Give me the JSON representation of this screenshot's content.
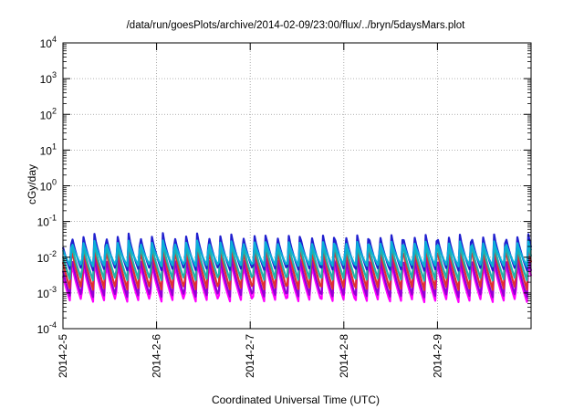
{
  "chart_data": {
    "type": "line",
    "title": "/data/run/goesPlots/archive/2014-02-09/23:00/flux/../bryn/5daysMars.plot",
    "xlabel": "Coordinated Universal Time (UTC)",
    "ylabel": "cGy/day",
    "y_scale": "log",
    "ylim": [
      0.0001,
      10000
    ],
    "xlim": [
      "2014-02-05 00:00",
      "2014-02-10 00:00"
    ],
    "grid": true,
    "legend": "none",
    "x_tick_labels": [
      "2014-2-5",
      "2014-2-6",
      "2014-2-7",
      "2014-2-8",
      "2014-2-9"
    ],
    "y_ticks": [
      {
        "base": "10",
        "exp": "-4"
      },
      {
        "base": "10",
        "exp": "-3"
      },
      {
        "base": "10",
        "exp": "-2"
      },
      {
        "base": "10",
        "exp": "-1"
      },
      {
        "base": "10",
        "exp": "0"
      },
      {
        "base": "10",
        "exp": "1"
      },
      {
        "base": "10",
        "exp": "2"
      },
      {
        "base": "10",
        "exp": "3"
      },
      {
        "base": "10",
        "exp": "4"
      }
    ],
    "cycles_per_day": 8.2,
    "series": [
      {
        "color": "#ff00ff",
        "peak": 0.0085,
        "trough": 0.00055
      },
      {
        "color": "#9400d3",
        "peak": 0.012,
        "trough": 0.00075
      },
      {
        "color": "#e03030",
        "peak": 0.022,
        "trough": 0.0012
      },
      {
        "color": "#20b2aa",
        "peak": 0.028,
        "trough": 0.0022
      },
      {
        "color": "#1f1fcf",
        "peak": 0.048,
        "trough": 0.0042
      },
      {
        "color": "#0ab0d8",
        "peak": 0.03,
        "trough": 0.0055
      }
    ]
  }
}
